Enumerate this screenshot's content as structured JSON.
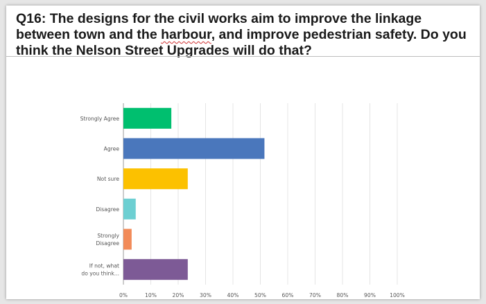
{
  "question": {
    "before": "Q16: The designs for the civil works aim to improve the linkage between town and the ",
    "squiggle": "harbour",
    "after": ", and improve pedestrian safety. Do you think the Nelson Street Upgrades will do that?"
  },
  "chart_data": {
    "type": "bar",
    "orientation": "horizontal",
    "categories": [
      [
        "Strongly Agree"
      ],
      [
        "Agree"
      ],
      [
        "Not sure"
      ],
      [
        "Disagree"
      ],
      [
        "Strongly",
        "Disagree"
      ],
      [
        "If not, what",
        "do you think..."
      ]
    ],
    "values": [
      17.5,
      51.5,
      23.5,
      4.5,
      3.0,
      23.5
    ],
    "colors": [
      "#00bf6f",
      "#4a77bc",
      "#fcc100",
      "#6dcfd2",
      "#f28b59",
      "#7d5a96"
    ],
    "xlim": [
      0,
      100
    ],
    "ticks": [
      0,
      10,
      20,
      30,
      40,
      50,
      60,
      70,
      80,
      90,
      100
    ],
    "tick_suffix": "%",
    "grid": true,
    "title": "",
    "xlabel": "",
    "ylabel": ""
  }
}
